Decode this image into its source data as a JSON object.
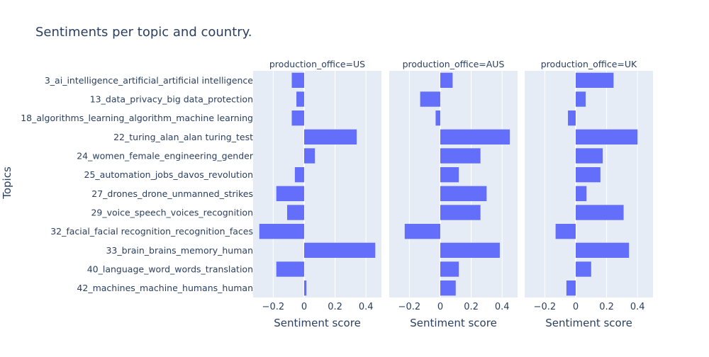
{
  "chart_data": {
    "type": "bar",
    "orientation": "horizontal",
    "title": "Sentiments per topic and country.",
    "xlabel": "Sentiment score",
    "ylabel": "Topics",
    "xlim": [
      -0.33,
      0.5
    ],
    "x_ticks": [
      -0.2,
      0,
      0.2,
      0.4
    ],
    "x_tick_labels": [
      "−0.2",
      "0",
      "0.2",
      "0.4"
    ],
    "grid": true,
    "colors": {
      "bar": "#636efa",
      "plot_bg": "#e5ecf6",
      "grid": "#ffffff",
      "text": "#2a3f5f"
    },
    "categories": [
      "3_ai_intelligence_artificial_artificial intelligence",
      "13_data_privacy_big data_protection",
      "18_algorithms_learning_algorithm_machine learning",
      "22_turing_alan_alan turing_test",
      "24_women_female_engineering_gender",
      "25_automation_jobs_davos_revolution",
      "27_drones_drone_unmanned_strikes",
      "29_voice_speech_voices_recognition",
      "32_facial_facial recognition_recognition_faces",
      "33_brain_brains_memory_human",
      "40_language_word_words_translation",
      "42_machines_machine_humans_human"
    ],
    "series": [
      {
        "name": "production_office=US",
        "values": [
          -0.08,
          -0.05,
          -0.08,
          0.34,
          0.07,
          -0.06,
          -0.18,
          -0.11,
          -0.29,
          0.46,
          -0.18,
          0.015
        ]
      },
      {
        "name": "production_office=AUS",
        "values": [
          0.08,
          -0.13,
          -0.03,
          0.45,
          0.26,
          0.12,
          0.3,
          0.26,
          -0.23,
          0.385,
          0.12,
          0.1
        ]
      },
      {
        "name": "production_office=UK",
        "values": [
          0.245,
          0.065,
          -0.05,
          0.4,
          0.175,
          0.16,
          0.07,
          0.31,
          -0.13,
          0.345,
          0.1,
          -0.06
        ]
      }
    ]
  }
}
